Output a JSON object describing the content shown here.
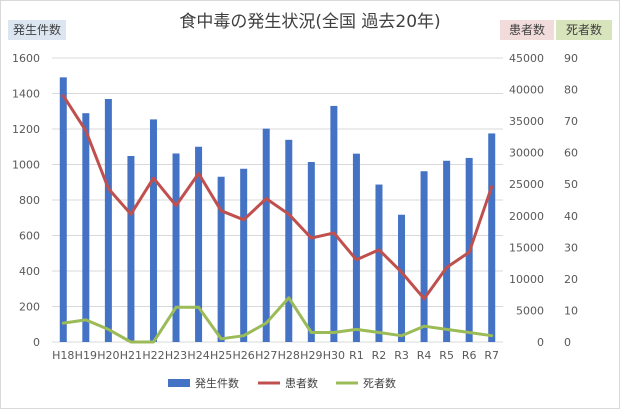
{
  "chart_data": {
    "type": "bar",
    "title": "食中毒の発生状況(全国 過去20年)",
    "categories": [
      "H18",
      "H19",
      "H20",
      "H21",
      "H22",
      "H23",
      "H24",
      "H25",
      "H26",
      "H27",
      "H28",
      "H29",
      "H30",
      "R1",
      "R2",
      "R3",
      "R4",
      "R5",
      "R6",
      "R7"
    ],
    "series": [
      {
        "name": "発生件数",
        "type": "bar",
        "axis": "left",
        "color": "#4472C4",
        "values": [
          1491,
          1289,
          1369,
          1048,
          1254,
          1062,
          1100,
          931,
          976,
          1202,
          1139,
          1014,
          1330,
          1061,
          887,
          717,
          962,
          1021,
          1037,
          1175
        ]
      },
      {
        "name": "患者数",
        "type": "line",
        "axis": "right1",
        "color": "#C0504D",
        "values": [
          39026,
          33477,
          24303,
          20249,
          25972,
          21616,
          26699,
          20802,
          19355,
          22718,
          20252,
          16464,
          17282,
          13018,
          14613,
          11080,
          6856,
          11803,
          14229,
          24600
        ]
      },
      {
        "name": "死者数",
        "type": "line",
        "axis": "right2",
        "color": "#9BBB59",
        "values": [
          6,
          7,
          4,
          0,
          0,
          11,
          11,
          1,
          2,
          6,
          14,
          3,
          3,
          4,
          3,
          2,
          5,
          4,
          3,
          2
        ]
      }
    ],
    "axes": {
      "left": {
        "label": "発生件数",
        "min": 0,
        "max": 1600,
        "step": 200
      },
      "right1": {
        "label": "患者数",
        "min": 0,
        "max": 45000,
        "step": 5000
      },
      "right2": {
        "label": "死者数",
        "min": 0,
        "max": 90,
        "step": 10
      }
    },
    "grid": true,
    "legend_position": "bottom"
  }
}
